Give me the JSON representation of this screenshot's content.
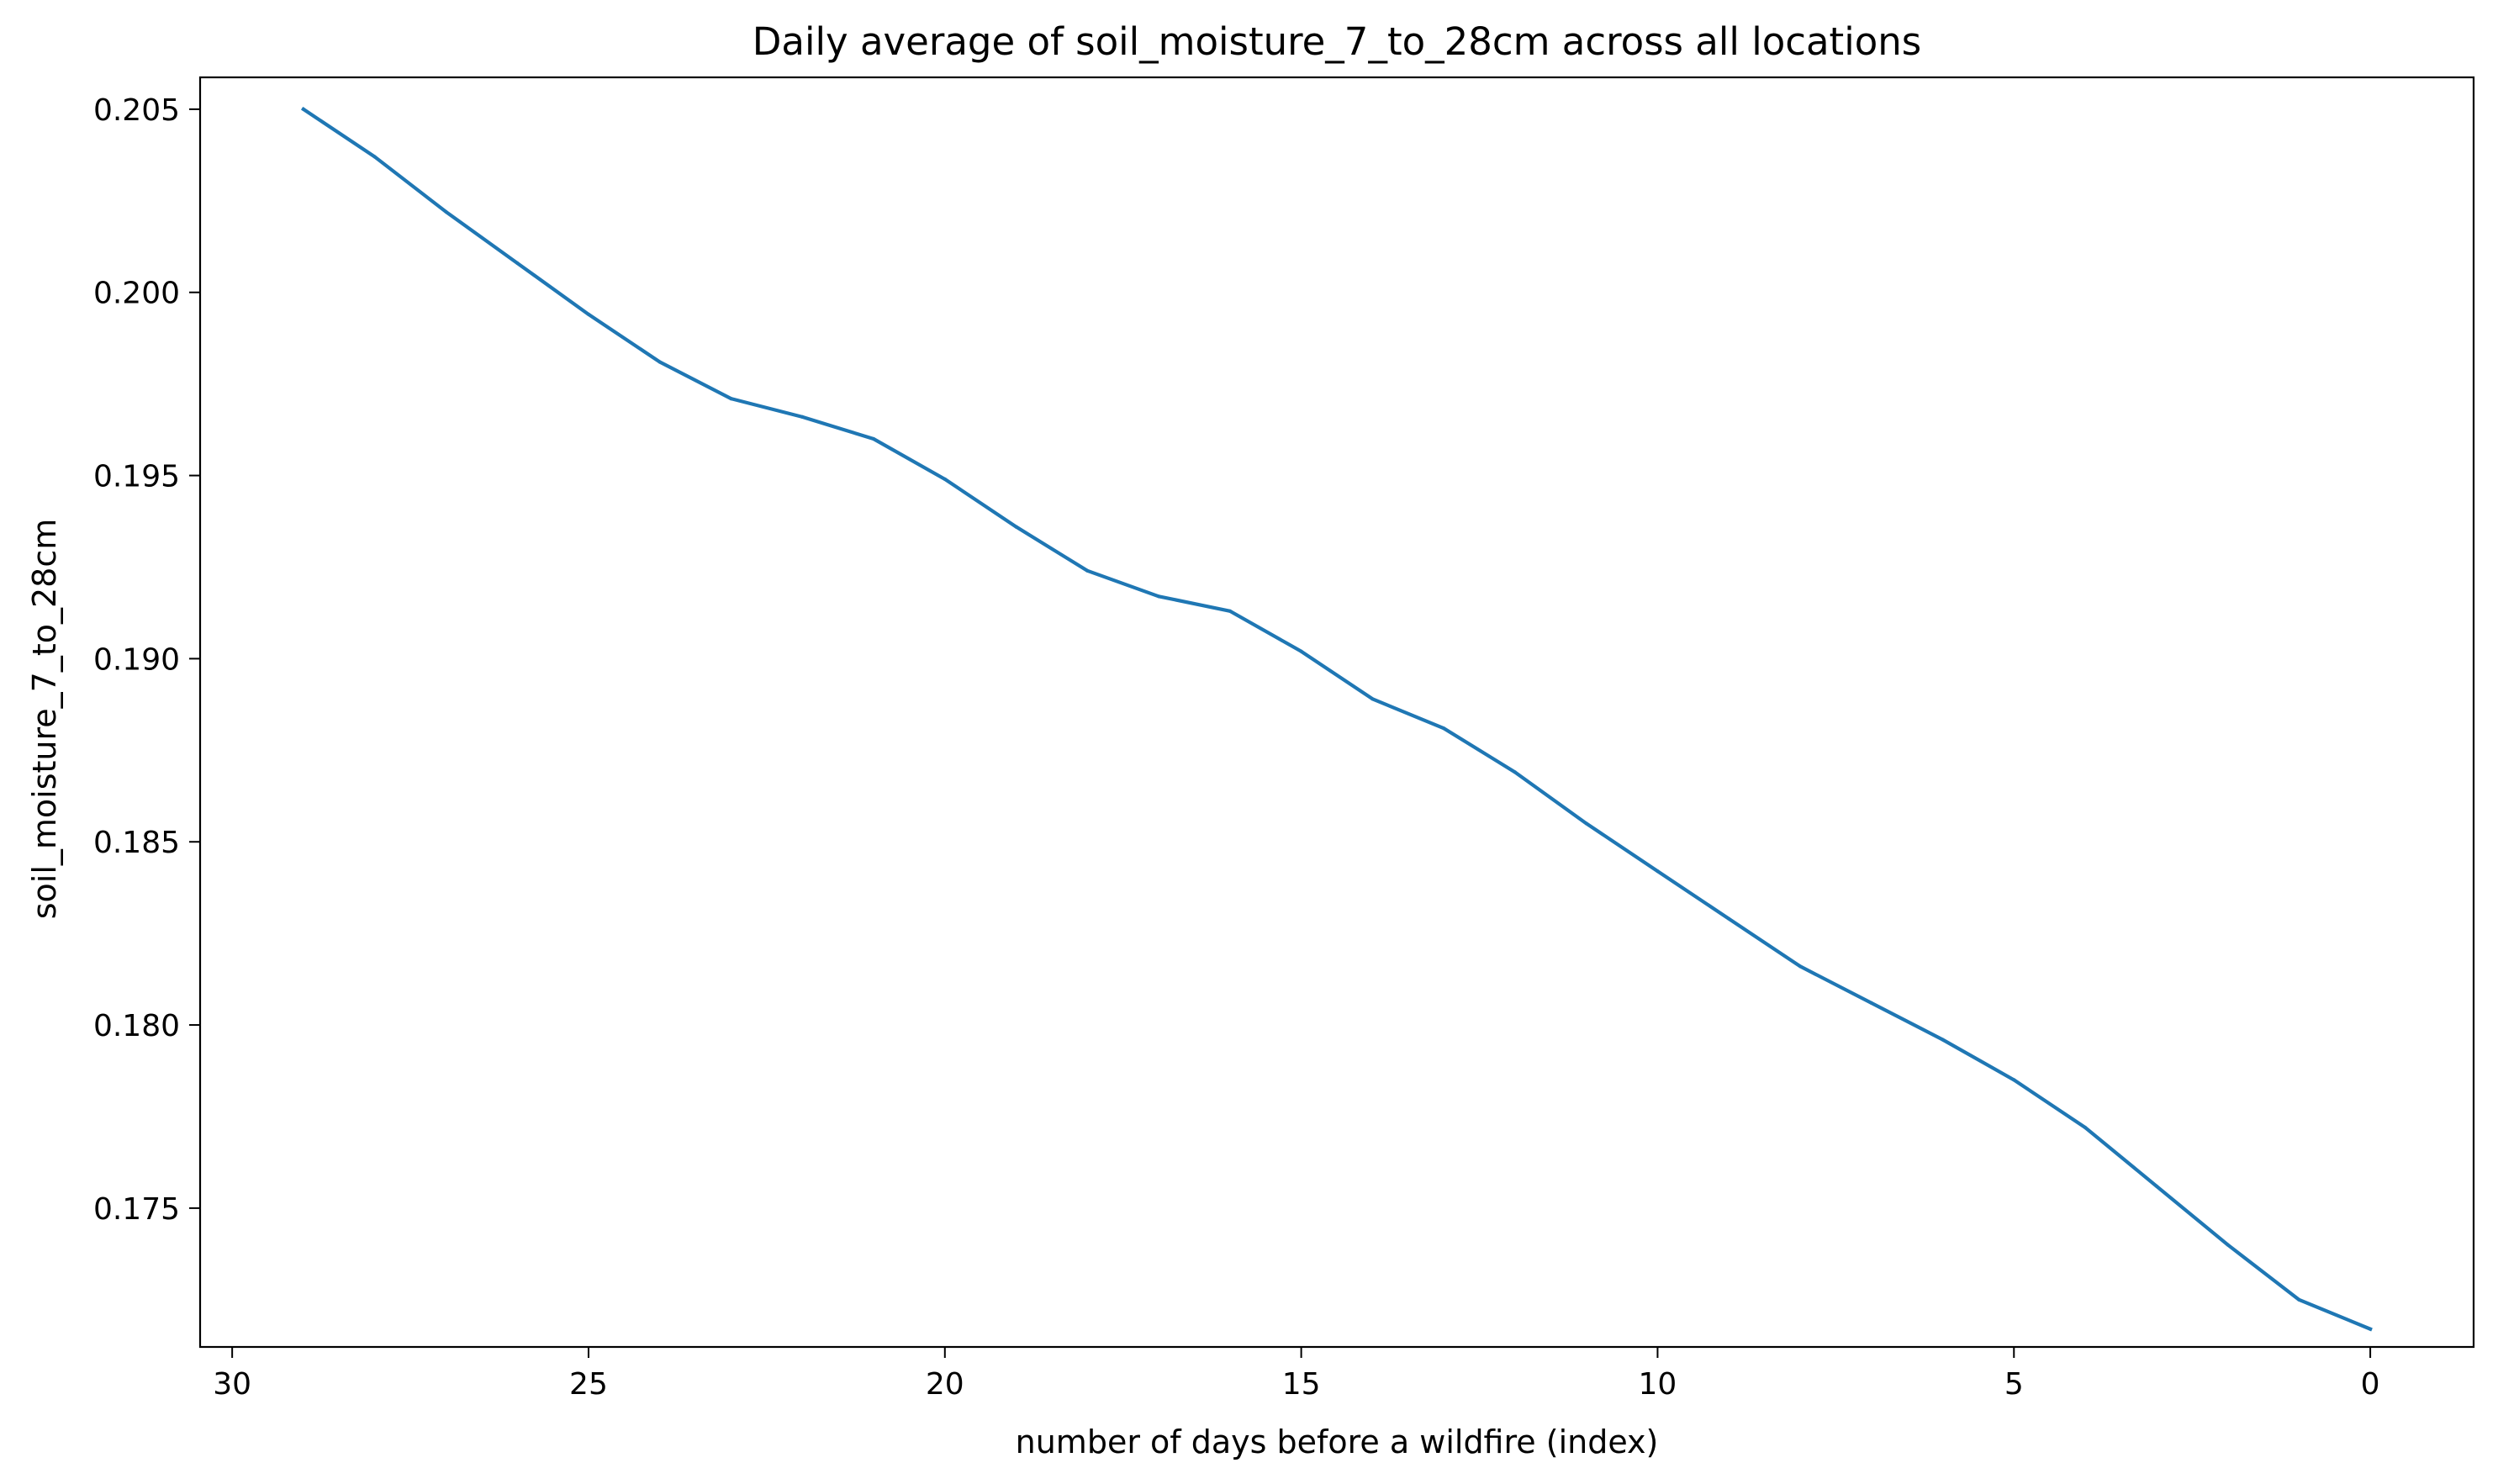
{
  "chart_data": {
    "type": "line",
    "title": "Daily average of soil_moisture_7_to_28cm across all locations",
    "xlabel": "number of days before a wildfire (index)",
    "ylabel": "soil_moisture_7_to_28cm",
    "x_inverted": true,
    "xlim": [
      30.45,
      -1.45
    ],
    "ylim": [
      0.17121,
      0.20587
    ],
    "xticks": [
      30,
      25,
      20,
      15,
      10,
      5,
      0
    ],
    "xtick_labels": [
      "30",
      "25",
      "20",
      "15",
      "10",
      "5",
      "0"
    ],
    "yticks": [
      0.175,
      0.18,
      0.185,
      0.19,
      0.195,
      0.2,
      0.205
    ],
    "ytick_labels": [
      "0.175",
      "0.180",
      "0.185",
      "0.190",
      "0.195",
      "0.200",
      "0.205"
    ],
    "grid": false,
    "series": [
      {
        "color": "#1f77b4",
        "x": [
          29,
          28,
          27,
          26,
          25,
          24,
          23,
          22,
          21,
          20,
          19,
          18,
          17,
          16,
          15,
          14,
          13,
          12,
          11,
          10,
          9,
          8,
          7,
          6,
          5,
          4,
          3,
          2,
          1,
          0
        ],
        "y": [
          0.205,
          0.2037,
          0.2022,
          0.2008,
          0.1994,
          0.1981,
          0.1971,
          0.1966,
          0.196,
          0.1949,
          0.1936,
          0.1924,
          0.1917,
          0.1913,
          0.1902,
          0.1889,
          0.1881,
          0.1869,
          0.1855,
          0.1842,
          0.1829,
          0.1816,
          0.1806,
          0.1796,
          0.1785,
          0.1772,
          0.1756,
          0.174,
          0.1725,
          0.1717
        ]
      }
    ]
  }
}
